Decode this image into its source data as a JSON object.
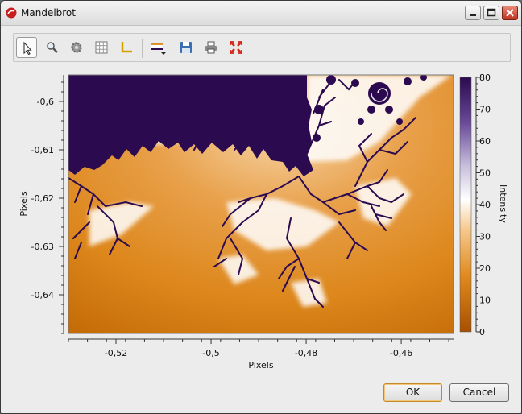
{
  "window": {
    "title": "Mandelbrot"
  },
  "toolbar": {
    "tools": [
      {
        "name": "pointer-tool"
      },
      {
        "name": "zoom-tool"
      },
      {
        "name": "settings-tool"
      },
      {
        "name": "grid-tool"
      },
      {
        "name": "axes-tool"
      },
      {
        "name": "colormap-tool"
      },
      {
        "name": "save-tool"
      },
      {
        "name": "print-tool"
      },
      {
        "name": "fit-tool"
      }
    ]
  },
  "chart_data": {
    "type": "heatmap",
    "title": "",
    "xlabel": "Pixels",
    "ylabel": "Pixels",
    "colorbar_label": "Intensity",
    "x_ticks": [
      "-0,52",
      "-0,5",
      "-0,48",
      "-0,46"
    ],
    "y_ticks": [
      "-0,6",
      "-0,61",
      "-0,62",
      "-0,63",
      "-0,64"
    ],
    "colorbar_ticks": [
      "80",
      "70",
      "60",
      "50",
      "40",
      "30",
      "20",
      "10",
      "0"
    ],
    "xlim": [
      -0.53,
      -0.449
    ],
    "ylim": [
      -0.648,
      -0.5945
    ],
    "zlim": [
      0,
      80
    ],
    "colormap": [
      "#b85a00",
      "#e08a1e",
      "#f7d6a9",
      "#ffffff",
      "#2b0a4f"
    ]
  },
  "buttons": {
    "ok": "OK",
    "cancel": "Cancel"
  }
}
